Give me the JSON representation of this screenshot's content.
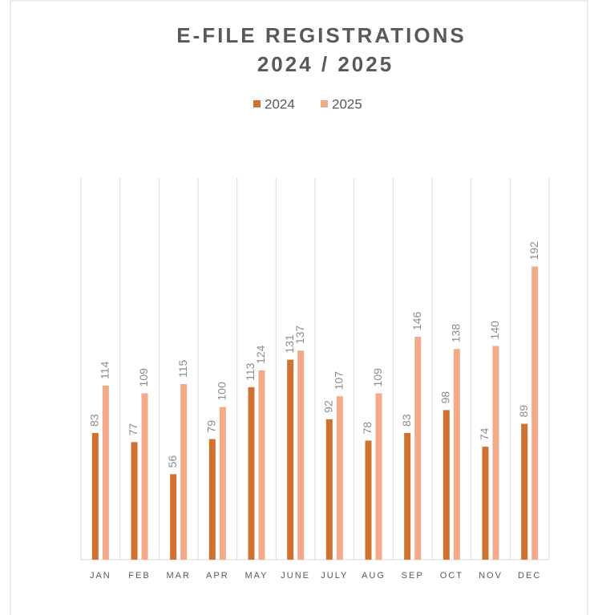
{
  "chart_data": {
    "type": "bar",
    "title": [
      "E-FILE REGISTRATIONS",
      "2024 / 2025"
    ],
    "categories": [
      "JAN",
      "FEB",
      "MAR",
      "APR",
      "MAY",
      "JUNE",
      "JULY",
      "AUG",
      "SEP",
      "OCT",
      "NOV",
      "DEC"
    ],
    "series": [
      {
        "name": "2024",
        "color": "#d0712f",
        "values": [
          83,
          77,
          56,
          79,
          113,
          131,
          92,
          78,
          83,
          98,
          74,
          89
        ]
      },
      {
        "name": "2025",
        "color": "#f2aa8b",
        "values": [
          114,
          109,
          115,
          100,
          124,
          137,
          107,
          109,
          146,
          138,
          140,
          192
        ]
      }
    ],
    "ylim": [
      0,
      250
    ],
    "legend": "top",
    "data_labels": true
  }
}
